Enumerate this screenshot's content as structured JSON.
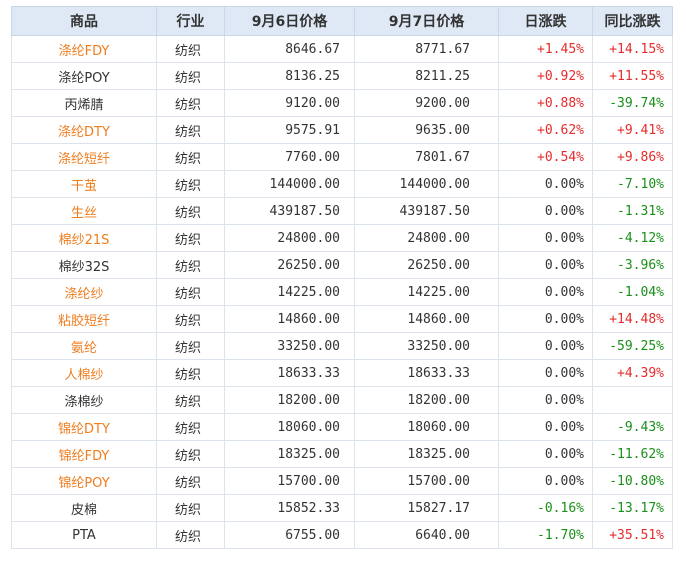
{
  "header": {
    "product": "商品",
    "industry": "行业",
    "price_sep6": "9月6日价格",
    "price_sep7": "9月7日价格",
    "daily_change": "日涨跌",
    "yoy_change": "同比涨跌"
  },
  "colors": {
    "link": "#f07d1e",
    "up": "#e62b2b",
    "down": "#1a8f1a",
    "header_bg": "#dfe9f5"
  },
  "rows": [
    {
      "name": "涤纶FDY",
      "name_style": "link",
      "industry": "纺织",
      "p6": "8646.67",
      "p7": "8771.67",
      "day": "+1.45%",
      "day_style": "up",
      "yoy": "+14.15%",
      "yoy_style": "up"
    },
    {
      "name": "涤纶POY",
      "name_style": "plain",
      "industry": "纺织",
      "p6": "8136.25",
      "p7": "8211.25",
      "day": "+0.92%",
      "day_style": "up",
      "yoy": "+11.55%",
      "yoy_style": "up"
    },
    {
      "name": "丙烯腈",
      "name_style": "plain",
      "industry": "纺织",
      "p6": "9120.00",
      "p7": "9200.00",
      "day": "+0.88%",
      "day_style": "up",
      "yoy": "-39.74%",
      "yoy_style": "down"
    },
    {
      "name": "涤纶DTY",
      "name_style": "link",
      "industry": "纺织",
      "p6": "9575.91",
      "p7": "9635.00",
      "day": "+0.62%",
      "day_style": "up",
      "yoy": "+9.41%",
      "yoy_style": "up"
    },
    {
      "name": "涤纶短纤",
      "name_style": "link",
      "industry": "纺织",
      "p6": "7760.00",
      "p7": "7801.67",
      "day": "+0.54%",
      "day_style": "up",
      "yoy": "+9.86%",
      "yoy_style": "up"
    },
    {
      "name": "干茧",
      "name_style": "link",
      "industry": "纺织",
      "p6": "144000.00",
      "p7": "144000.00",
      "day": "0.00%",
      "day_style": "flat",
      "yoy": "-7.10%",
      "yoy_style": "down"
    },
    {
      "name": "生丝",
      "name_style": "link",
      "industry": "纺织",
      "p6": "439187.50",
      "p7": "439187.50",
      "day": "0.00%",
      "day_style": "flat",
      "yoy": "-1.31%",
      "yoy_style": "down"
    },
    {
      "name": "棉纱21S",
      "name_style": "link",
      "industry": "纺织",
      "p6": "24800.00",
      "p7": "24800.00",
      "day": "0.00%",
      "day_style": "flat",
      "yoy": "-4.12%",
      "yoy_style": "down"
    },
    {
      "name": "棉纱32S",
      "name_style": "plain",
      "industry": "纺织",
      "p6": "26250.00",
      "p7": "26250.00",
      "day": "0.00%",
      "day_style": "flat",
      "yoy": "-3.96%",
      "yoy_style": "down"
    },
    {
      "name": "涤纶纱",
      "name_style": "link",
      "industry": "纺织",
      "p6": "14225.00",
      "p7": "14225.00",
      "day": "0.00%",
      "day_style": "flat",
      "yoy": "-1.04%",
      "yoy_style": "down"
    },
    {
      "name": "粘胶短纤",
      "name_style": "link",
      "industry": "纺织",
      "p6": "14860.00",
      "p7": "14860.00",
      "day": "0.00%",
      "day_style": "flat",
      "yoy": "+14.48%",
      "yoy_style": "up"
    },
    {
      "name": "氨纶",
      "name_style": "link",
      "industry": "纺织",
      "p6": "33250.00",
      "p7": "33250.00",
      "day": "0.00%",
      "day_style": "flat",
      "yoy": "-59.25%",
      "yoy_style": "down"
    },
    {
      "name": "人棉纱",
      "name_style": "link",
      "industry": "纺织",
      "p6": "18633.33",
      "p7": "18633.33",
      "day": "0.00%",
      "day_style": "flat",
      "yoy": "+4.39%",
      "yoy_style": "up"
    },
    {
      "name": "涤棉纱",
      "name_style": "plain",
      "industry": "纺织",
      "p6": "18200.00",
      "p7": "18200.00",
      "day": "0.00%",
      "day_style": "flat",
      "yoy": "",
      "yoy_style": "flat"
    },
    {
      "name": "锦纶DTY",
      "name_style": "link",
      "industry": "纺织",
      "p6": "18060.00",
      "p7": "18060.00",
      "day": "0.00%",
      "day_style": "flat",
      "yoy": "-9.43%",
      "yoy_style": "down"
    },
    {
      "name": "锦纶FDY",
      "name_style": "link",
      "industry": "纺织",
      "p6": "18325.00",
      "p7": "18325.00",
      "day": "0.00%",
      "day_style": "flat",
      "yoy": "-11.62%",
      "yoy_style": "down"
    },
    {
      "name": "锦纶POY",
      "name_style": "link",
      "industry": "纺织",
      "p6": "15700.00",
      "p7": "15700.00",
      "day": "0.00%",
      "day_style": "flat",
      "yoy": "-10.80%",
      "yoy_style": "down"
    },
    {
      "name": "皮棉",
      "name_style": "plain",
      "industry": "纺织",
      "p6": "15852.33",
      "p7": "15827.17",
      "day": "-0.16%",
      "day_style": "down",
      "yoy": "-13.17%",
      "yoy_style": "down"
    },
    {
      "name": "PTA",
      "name_style": "plain",
      "industry": "纺织",
      "p6": "6755.00",
      "p7": "6640.00",
      "day": "-1.70%",
      "day_style": "down",
      "yoy": "+35.51%",
      "yoy_style": "up"
    }
  ]
}
